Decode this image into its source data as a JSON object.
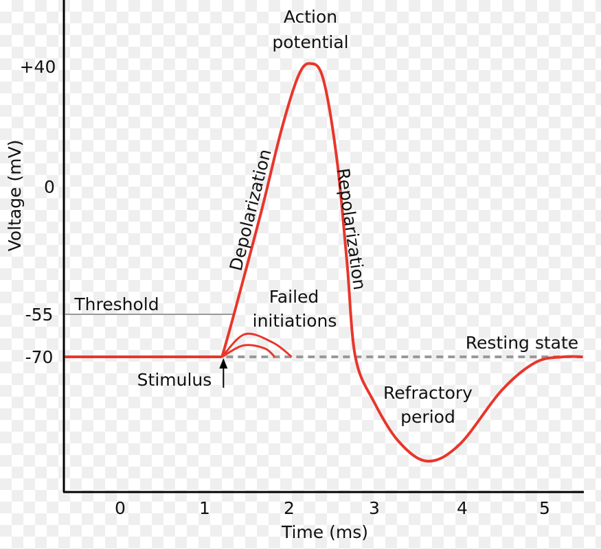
{
  "chart_data": {
    "type": "line",
    "xlabel": "Time (ms)",
    "ylabel": "Voltage (mV)",
    "x_ticks": [
      "0",
      "1",
      "2",
      "3",
      "4",
      "5"
    ],
    "y_ticks": [
      "+40",
      "0",
      "-55",
      "-70"
    ],
    "xlim": [
      -0.66,
      5.45
    ],
    "grid": false,
    "colors": {
      "curve": "#e8362b",
      "threshold": "#999999",
      "resting": "#999999"
    },
    "series": [
      {
        "points": [
          [
            -0.65,
            -70
          ],
          [
            1.2,
            -70
          ],
          [
            1.34,
            -55
          ],
          [
            1.66,
            -11
          ],
          [
            1.9,
            19
          ],
          [
            2.1,
            37
          ],
          [
            2.24,
            41
          ],
          [
            2.39,
            36
          ],
          [
            2.55,
            9.6
          ],
          [
            2.67,
            -32
          ],
          [
            2.77,
            -70
          ],
          [
            2.99,
            -86
          ],
          [
            3.28,
            -100
          ],
          [
            3.62,
            -107
          ],
          [
            4.0,
            -101
          ],
          [
            4.49,
            -82
          ],
          [
            4.89,
            -72
          ],
          [
            5.22,
            -70
          ],
          [
            5.45,
            -70
          ]
        ]
      },
      {
        "points": [
          [
            1.2,
            -70
          ],
          [
            1.47,
            -62
          ],
          [
            1.8,
            -65
          ],
          [
            2.02,
            -70
          ]
        ]
      },
      {
        "points": [
          [
            1.2,
            -70
          ],
          [
            1.45,
            -66
          ],
          [
            1.7,
            -67
          ],
          [
            1.82,
            -70
          ]
        ]
      }
    ],
    "threshold": -55,
    "resting": -70,
    "stimulus_time": 1.2,
    "annotations": {
      "action_potential_1": "Action",
      "action_potential_2": "potential",
      "depolarization": "Depolarization",
      "repolarization": "Repolarization",
      "threshold": "Threshold",
      "failed_1": "Failed",
      "failed_2": "initiations",
      "resting": "Resting state",
      "stimulus": "Stimulus",
      "refractory_1": "Refractory",
      "refractory_2": "period"
    }
  }
}
